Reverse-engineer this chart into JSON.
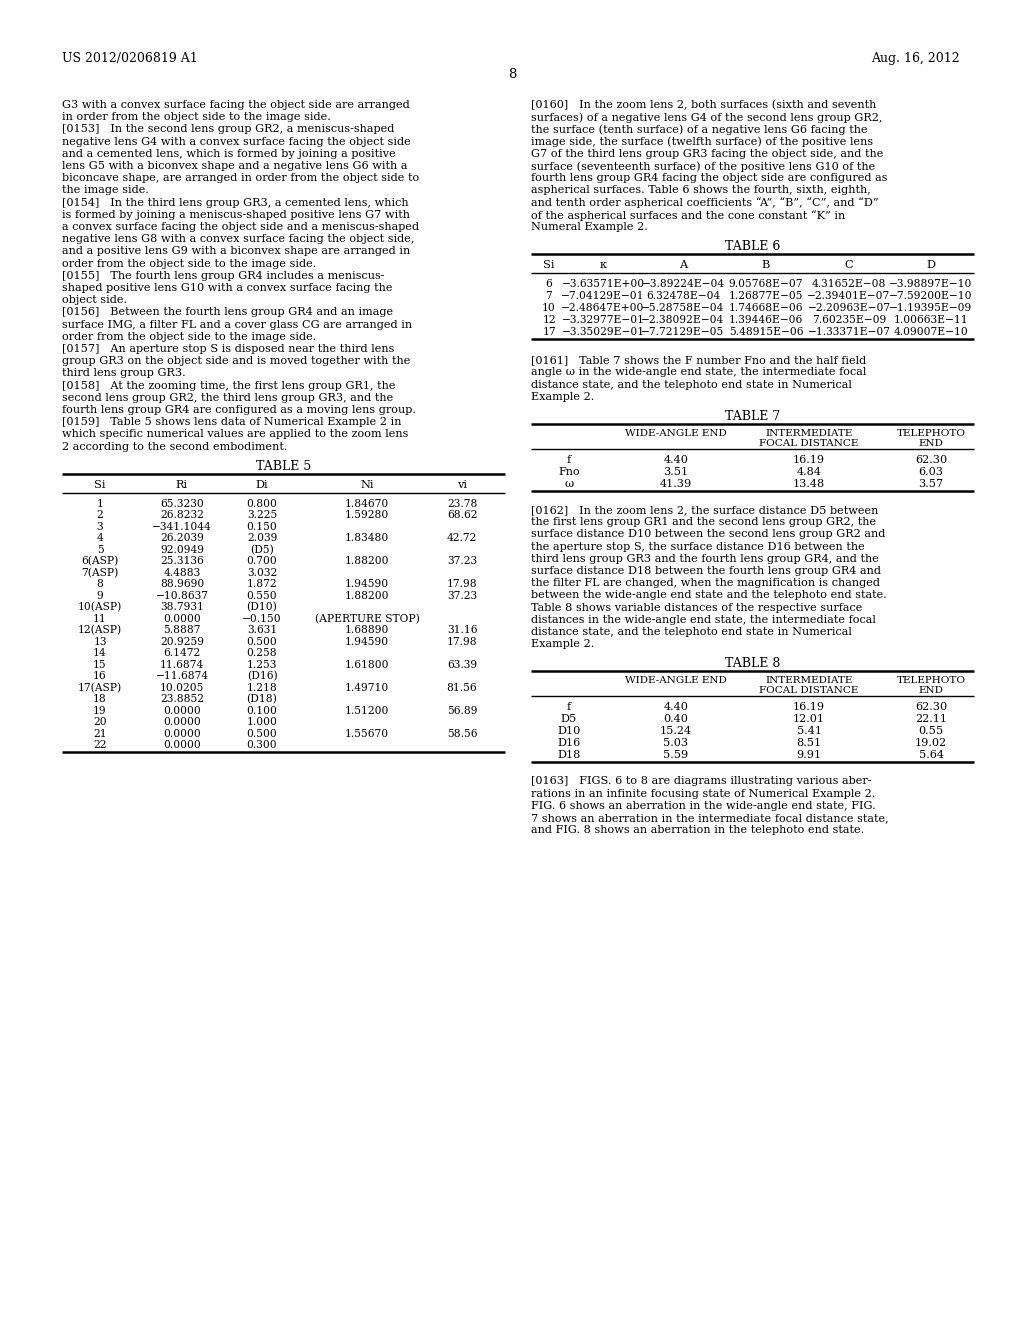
{
  "page_number": "8",
  "patent_number": "US 2012/0206819 A1",
  "patent_date": "Aug. 16, 2012",
  "background_color": "#ffffff",
  "table6_title": "TABLE 6",
  "table6_headers": [
    "Si",
    "κ",
    "A",
    "B",
    "C",
    "D"
  ],
  "table6_rows": [
    [
      "6",
      "−3.63571E+00",
      "−3.89224E−04",
      "9.05768E−07",
      "4.31652E−08",
      "−3.98897E−10"
    ],
    [
      "7",
      "−7.04129E−01",
      "6.32478E−04",
      "1.26877E−05",
      "−2.39401E−07",
      "−7.59200E−10"
    ],
    [
      "10",
      "−2.48647E+00",
      "−5.28758E−04",
      "1.74668E−06",
      "−2.20963E−07",
      "−1.19395E−09"
    ],
    [
      "12",
      "−3.32977E−01",
      "−2.38092E−04",
      "1.39446E−06",
      "7.60235E−09",
      "1.00663E−11"
    ],
    [
      "17",
      "−3.35029E−01",
      "−7.72129E−05",
      "5.48915E−06",
      "−1.33371E−07",
      "4.09007E−10"
    ]
  ],
  "table7_title": "TABLE 7",
  "table7_rows": [
    [
      "f",
      "4.40",
      "16.19",
      "62.30"
    ],
    [
      "Fno",
      "3.51",
      "4.84",
      "6.03"
    ],
    [
      "ω",
      "41.39",
      "13.48",
      "3.57"
    ]
  ],
  "table5_title": "TABLE 5",
  "table5_headers": [
    "Si",
    "Ri",
    "Di",
    "Ni",
    "vi"
  ],
  "table5_rows": [
    [
      "1",
      "65.3230",
      "0.800",
      "1.84670",
      "23.78"
    ],
    [
      "2",
      "26.8232",
      "3.225",
      "1.59280",
      "68.62"
    ],
    [
      "3",
      "−341.1044",
      "0.150",
      "",
      ""
    ],
    [
      "4",
      "26.2039",
      "2.039",
      "1.83480",
      "42.72"
    ],
    [
      "5",
      "92.0949",
      "(D5)",
      "",
      ""
    ],
    [
      "6(ASP)",
      "25.3136",
      "0.700",
      "1.88200",
      "37.23"
    ],
    [
      "7(ASP)",
      "4.4883",
      "3.032",
      "",
      ""
    ],
    [
      "8",
      "88.9690",
      "1.872",
      "1.94590",
      "17.98"
    ],
    [
      "9",
      "−10.8637",
      "0.550",
      "1.88200",
      "37.23"
    ],
    [
      "10(ASP)",
      "38.7931",
      "(D10)",
      "",
      ""
    ],
    [
      "11",
      "0.0000",
      "−0.150",
      "(APERTURE STOP)",
      ""
    ],
    [
      "12(ASP)",
      "5.8887",
      "3.631",
      "1.68890",
      "31.16"
    ],
    [
      "13",
      "20.9259",
      "0.500",
      "1.94590",
      "17.98"
    ],
    [
      "14",
      "6.1472",
      "0.258",
      "",
      ""
    ],
    [
      "15",
      "11.6874",
      "1.253",
      "1.61800",
      "63.39"
    ],
    [
      "16",
      "−11.6874",
      "(D16)",
      "",
      ""
    ],
    [
      "17(ASP)",
      "10.0205",
      "1.218",
      "1.49710",
      "81.56"
    ],
    [
      "18",
      "23.8852",
      "(D18)",
      "",
      ""
    ],
    [
      "19",
      "0.0000",
      "0.100",
      "1.51200",
      "56.89"
    ],
    [
      "20",
      "0.0000",
      "1.000",
      "",
      ""
    ],
    [
      "21",
      "0.0000",
      "0.500",
      "1.55670",
      "58.56"
    ],
    [
      "22",
      "0.0000",
      "0.300",
      "",
      ""
    ]
  ],
  "table8_title": "TABLE 8",
  "table8_rows": [
    [
      "f",
      "4.40",
      "16.19",
      "62.30"
    ],
    [
      "D5",
      "0.40",
      "12.01",
      "22.11"
    ],
    [
      "D10",
      "15.24",
      "5.41",
      "0.55"
    ],
    [
      "D16",
      "5.03",
      "8.51",
      "19.02"
    ],
    [
      "D18",
      "5.59",
      "9.91",
      "5.64"
    ]
  ]
}
